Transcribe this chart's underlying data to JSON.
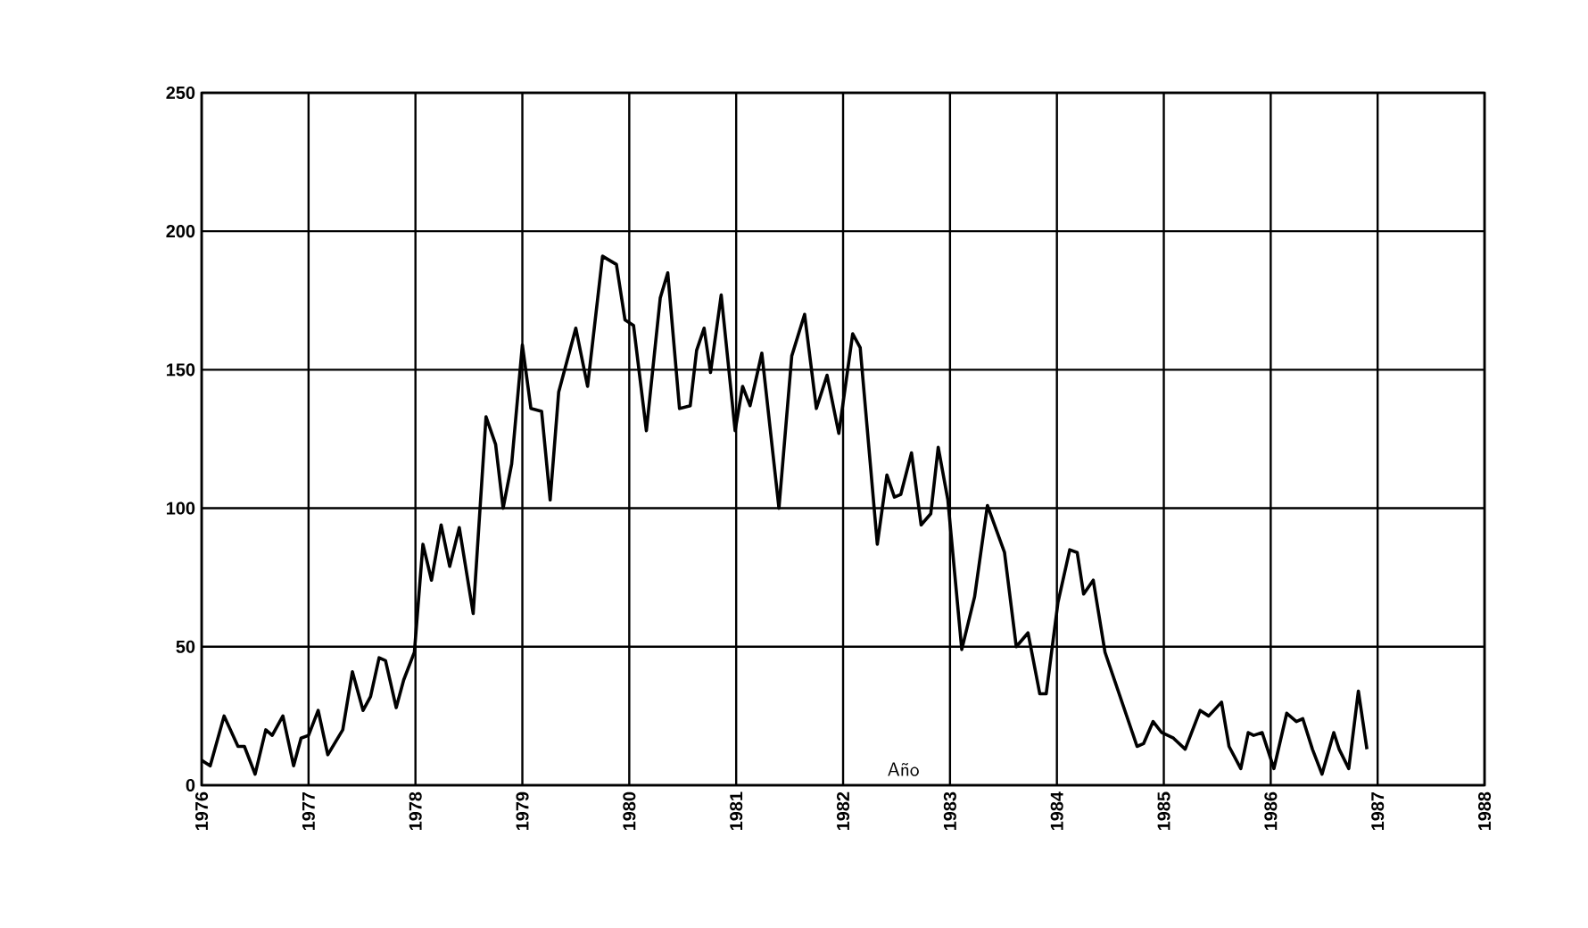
{
  "chart_data": {
    "type": "line",
    "xlabel": "Año",
    "x": [
      1976.0,
      1976.08,
      1976.21,
      1976.34,
      1976.4,
      1976.5,
      1976.6,
      1976.66,
      1976.76,
      1976.86,
      1976.93,
      1977.0,
      1977.09,
      1977.18,
      1977.32,
      1977.41,
      1977.51,
      1977.58,
      1977.66,
      1977.72,
      1977.82,
      1977.89,
      1977.99,
      1978.07,
      1978.15,
      1978.24,
      1978.32,
      1978.41,
      1978.54,
      1978.66,
      1978.75,
      1978.82,
      1978.9,
      1979.0,
      1979.08,
      1979.18,
      1979.26,
      1979.34,
      1979.5,
      1979.61,
      1979.75,
      1979.88,
      1979.96,
      1980.04,
      1980.16,
      1980.29,
      1980.36,
      1980.47,
      1980.57,
      1980.63,
      1980.7,
      1980.76,
      1980.86,
      1980.99,
      1981.06,
      1981.13,
      1981.24,
      1981.4,
      1981.52,
      1981.64,
      1981.75,
      1981.85,
      1981.96,
      1982.09,
      1982.16,
      1982.32,
      1982.41,
      1982.48,
      1982.54,
      1982.64,
      1982.73,
      1982.82,
      1982.89,
      1982.98,
      1983.11,
      1983.23,
      1983.35,
      1983.51,
      1983.62,
      1983.73,
      1983.84,
      1983.9,
      1984.01,
      1984.12,
      1984.19,
      1984.25,
      1984.34,
      1984.45,
      1984.75,
      1984.81,
      1984.9,
      1984.98,
      1985.09,
      1985.2,
      1985.34,
      1985.42,
      1985.54,
      1985.61,
      1985.72,
      1985.79,
      1985.84,
      1985.92,
      1986.03,
      1986.15,
      1986.24,
      1986.3,
      1986.39,
      1986.48,
      1986.59,
      1986.64,
      1986.73,
      1986.82,
      1986.9
    ],
    "values": [
      9,
      7,
      25,
      14,
      14,
      4,
      20,
      18,
      25,
      7,
      17,
      18,
      27,
      11,
      20,
      41,
      27,
      32,
      46,
      45,
      28,
      38,
      48,
      87,
      74,
      94,
      79,
      93,
      62,
      133,
      123,
      100,
      116,
      159,
      136,
      135,
      103,
      142,
      165,
      144,
      191,
      188,
      168,
      166,
      128,
      176,
      185,
      136,
      137,
      157,
      165,
      149,
      177,
      128,
      144,
      137,
      156,
      100,
      155,
      170,
      136,
      148,
      127,
      163,
      158,
      87,
      112,
      104,
      105,
      120,
      94,
      98,
      122,
      103,
      49,
      68,
      101,
      84,
      50,
      55,
      33,
      33,
      66,
      85,
      84,
      69,
      74,
      48,
      14,
      15,
      23,
      19,
      17,
      13,
      27,
      25,
      30,
      14,
      6,
      19,
      18,
      19,
      6,
      26,
      23,
      24,
      13,
      4,
      19,
      13,
      6,
      34,
      13
    ],
    "color": "#000000",
    "marker": "none",
    "line_style": "solid",
    "xlim": [
      1976,
      1988
    ],
    "xticks": [
      1976,
      1977,
      1978,
      1979,
      1980,
      1981,
      1982,
      1983,
      1984,
      1985,
      1986,
      1987,
      1988
    ],
    "ylim": [
      0,
      250
    ],
    "yticks": [
      0,
      50,
      100,
      150,
      200,
      250
    ],
    "grid": true
  }
}
